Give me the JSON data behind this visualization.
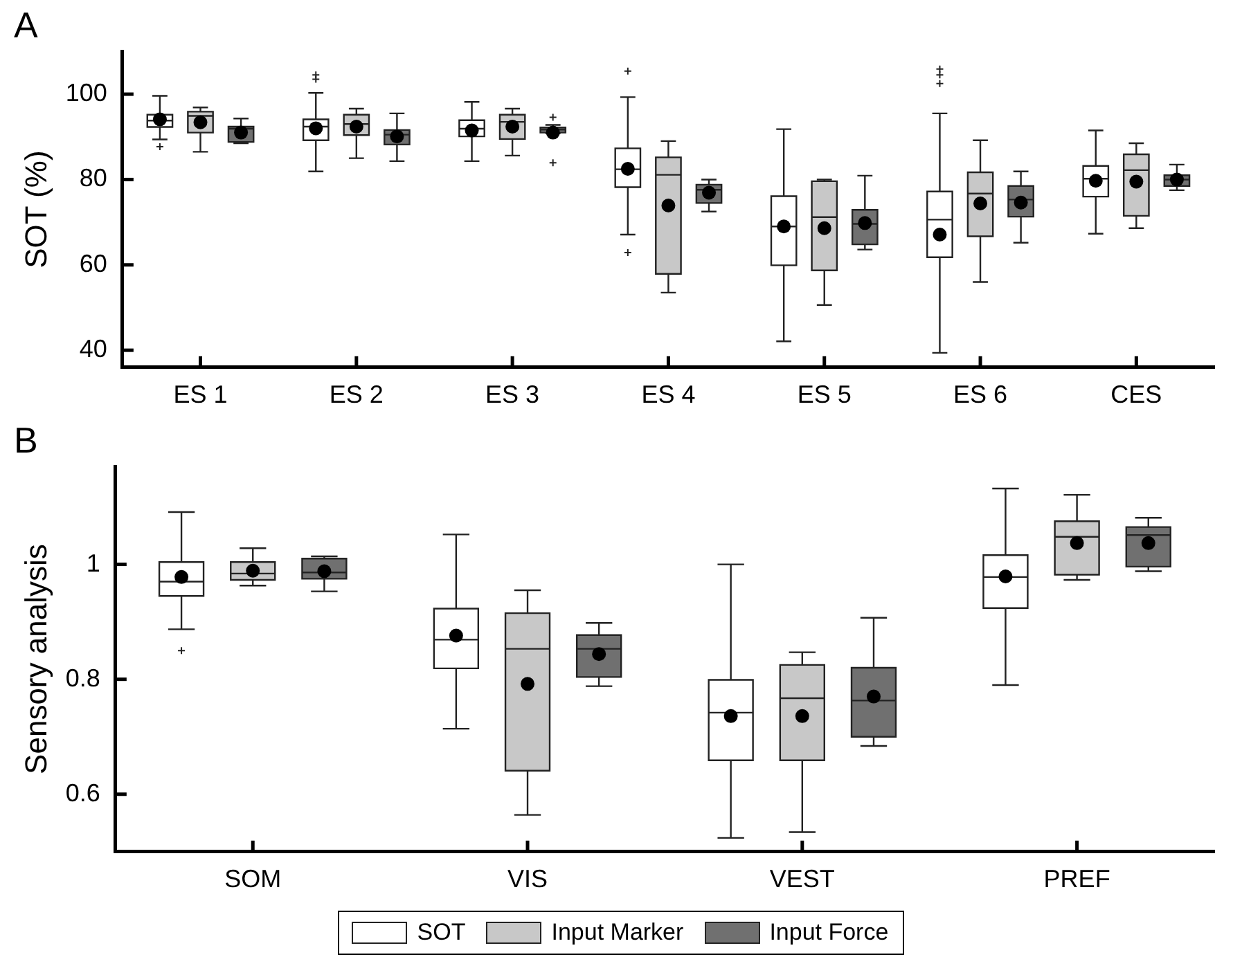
{
  "chart_data": [
    {
      "type": "box",
      "title": "A",
      "ylabel": "SOT (%)",
      "categories": [
        "ES 1",
        "ES 2",
        "ES 3",
        "ES 4",
        "ES 5",
        "ES 6",
        "CES"
      ],
      "ylim": [
        36,
        110
      ],
      "yticks": [
        40,
        60,
        80,
        100
      ],
      "grid": false,
      "legend": false,
      "marker": "circle",
      "series": [
        {
          "color": "#ffffff",
          "boxes": [
            {
              "low": 89.4,
              "q1": 92.3,
              "median": 93.8,
              "q3": 95.2,
              "high": 99.6,
              "mean": 94.1,
              "outliers": [
                87.7
              ]
            },
            {
              "low": 81.9,
              "q1": 89.2,
              "median": 92.4,
              "q3": 94.1,
              "high": 100.3,
              "mean": 92.0,
              "outliers": [
                103.5,
                104.5
              ]
            },
            {
              "low": 84.3,
              "q1": 90.1,
              "median": 91.9,
              "q3": 93.9,
              "high": 98.2,
              "mean": 91.5
            },
            {
              "low": 67.1,
              "q1": 78.2,
              "median": 82.4,
              "q3": 87.3,
              "high": 99.3,
              "mean": 82.5,
              "outliers": [
                62.9,
                105.4
              ]
            },
            {
              "low": 42.1,
              "q1": 59.9,
              "median": 69.0,
              "q3": 76.1,
              "high": 91.8,
              "mean": 69.0
            },
            {
              "low": 39.4,
              "q1": 61.8,
              "median": 70.6,
              "q3": 77.2,
              "high": 95.5,
              "mean": 67.1,
              "outliers": [
                102.5,
                104.5,
                105.9
              ]
            },
            {
              "low": 67.3,
              "q1": 76.0,
              "median": 80.2,
              "q3": 83.2,
              "high": 91.5,
              "mean": 79.7
            }
          ]
        },
        {
          "color": "#c8c8c8",
          "boxes": [
            {
              "low": 86.5,
              "q1": 91.0,
              "median": 94.9,
              "q3": 95.9,
              "high": 96.9,
              "mean": 93.4
            },
            {
              "low": 85.0,
              "q1": 90.4,
              "median": 93.0,
              "q3": 95.2,
              "high": 96.6,
              "mean": 92.4
            },
            {
              "low": 85.6,
              "q1": 89.5,
              "median": 93.5,
              "q3": 95.2,
              "high": 96.6,
              "mean": 92.4
            },
            {
              "low": 53.5,
              "q1": 57.9,
              "median": 81.1,
              "q3": 85.2,
              "high": 89.0,
              "mean": 73.9
            },
            {
              "low": 50.6,
              "q1": 58.7,
              "median": 71.2,
              "q3": 79.6,
              "high": 80.0,
              "mean": 68.6
            },
            {
              "low": 56.0,
              "q1": 66.7,
              "median": 76.7,
              "q3": 81.7,
              "high": 89.2,
              "mean": 74.4
            },
            {
              "low": 68.6,
              "q1": 71.5,
              "median": 82.2,
              "q3": 85.9,
              "high": 88.5,
              "mean": 79.5
            }
          ]
        },
        {
          "color": "#707070",
          "boxes": [
            {
              "low": 88.5,
              "q1": 88.8,
              "median": 91.9,
              "q3": 92.4,
              "high": 94.3,
              "mean": 91.0
            },
            {
              "low": 84.3,
              "q1": 88.2,
              "median": 90.5,
              "q3": 91.6,
              "high": 95.5,
              "mean": 90.1
            },
            {
              "low": 90.8,
              "q1": 91.0,
              "median": 91.7,
              "q3": 92.2,
              "high": 92.8,
              "mean": 91.0,
              "outliers": [
                83.9,
                94.6
              ]
            },
            {
              "low": 72.5,
              "q1": 74.5,
              "median": 77.6,
              "q3": 78.8,
              "high": 80.0,
              "mean": 76.9
            },
            {
              "low": 63.6,
              "q1": 64.8,
              "median": 69.6,
              "q3": 72.9,
              "high": 80.9,
              "mean": 69.8
            },
            {
              "low": 65.2,
              "q1": 71.3,
              "median": 75.3,
              "q3": 78.5,
              "high": 81.9,
              "mean": 74.6
            },
            {
              "low": 77.5,
              "q1": 78.5,
              "median": 80.0,
              "q3": 81.0,
              "high": 83.5,
              "mean": 80.0
            }
          ]
        }
      ]
    },
    {
      "type": "box",
      "title": "B",
      "ylabel": "Sensory analysis",
      "categories": [
        "SOM",
        "VIS",
        "VEST",
        "PREF"
      ],
      "ylim": [
        0.5,
        1.17
      ],
      "yticks": [
        0.6,
        0.8,
        1
      ],
      "grid": false,
      "legend": "bottom",
      "marker": "circle",
      "series": [
        {
          "name": "SOT",
          "color": "#ffffff",
          "boxes": [
            {
              "low": 0.887,
              "q1": 0.945,
              "median": 0.97,
              "q3": 1.004,
              "high": 1.091,
              "mean": 0.978,
              "outliers": [
                0.85
              ]
            },
            {
              "low": 0.714,
              "q1": 0.819,
              "median": 0.869,
              "q3": 0.923,
              "high": 1.052,
              "mean": 0.876
            },
            {
              "low": 0.524,
              "q1": 0.659,
              "median": 0.742,
              "q3": 0.799,
              "high": 1.0,
              "mean": 0.736
            },
            {
              "low": 0.79,
              "q1": 0.924,
              "median": 0.978,
              "q3": 1.016,
              "high": 1.132,
              "mean": 0.979
            }
          ]
        },
        {
          "name": "Input Marker",
          "color": "#c8c8c8",
          "boxes": [
            {
              "low": 0.963,
              "q1": 0.973,
              "median": 0.984,
              "q3": 1.004,
              "high": 1.028,
              "mean": 0.989
            },
            {
              "low": 0.564,
              "q1": 0.641,
              "median": 0.853,
              "q3": 0.915,
              "high": 0.955,
              "mean": 0.792
            },
            {
              "low": 0.534,
              "q1": 0.659,
              "median": 0.767,
              "q3": 0.825,
              "high": 0.847,
              "mean": 0.736
            },
            {
              "low": 0.973,
              "q1": 0.982,
              "median": 1.048,
              "q3": 1.075,
              "high": 1.121,
              "mean": 1.037
            }
          ]
        },
        {
          "name": "Input Force",
          "color": "#707070",
          "boxes": [
            {
              "low": 0.953,
              "q1": 0.975,
              "median": 0.986,
              "q3": 1.01,
              "high": 1.014,
              "mean": 0.988
            },
            {
              "low": 0.788,
              "q1": 0.804,
              "median": 0.853,
              "q3": 0.877,
              "high": 0.898,
              "mean": 0.844
            },
            {
              "low": 0.684,
              "q1": 0.7,
              "median": 0.763,
              "q3": 0.82,
              "high": 0.907,
              "mean": 0.77
            },
            {
              "low": 0.988,
              "q1": 0.996,
              "median": 1.051,
              "q3": 1.065,
              "high": 1.081,
              "mean": 1.037
            }
          ]
        }
      ]
    }
  ]
}
